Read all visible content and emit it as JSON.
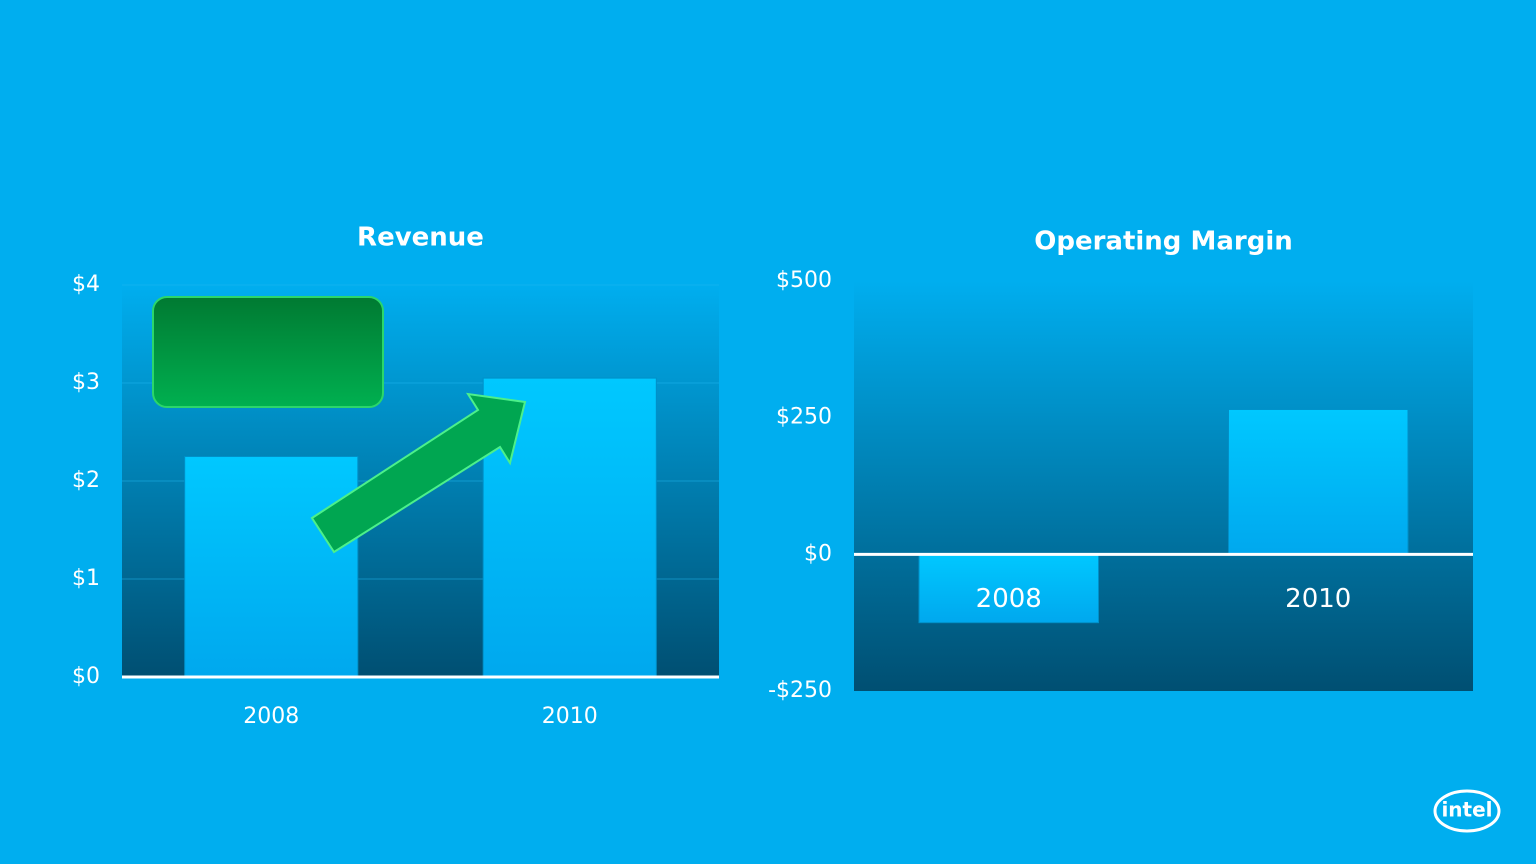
{
  "chart_data": [
    {
      "type": "bar",
      "title": "Revenue",
      "categories": [
        "2008",
        "2010"
      ],
      "values": [
        2.25,
        3.05
      ],
      "color": "#00b8f5",
      "ylim": [
        0,
        4
      ],
      "yticks": [
        {
          "value": 0,
          "label": "$0"
        },
        {
          "value": 1,
          "label": "$1"
        },
        {
          "value": 2,
          "label": "$2"
        },
        {
          "value": 3,
          "label": "$3"
        },
        {
          "value": 4,
          "label": "$4"
        }
      ],
      "grid": true
    },
    {
      "type": "bar",
      "title": "Operating Margin",
      "categories": [
        "2008",
        "2010"
      ],
      "values": [
        -125,
        265
      ],
      "color": "#00b8f5",
      "ylim": [
        -250,
        500
      ],
      "yticks": [
        {
          "value": -250,
          "label": "-$250"
        },
        {
          "value": 0,
          "label": "$0"
        },
        {
          "value": 250,
          "label": "$250"
        },
        {
          "value": 500,
          "label": "$500"
        }
      ],
      "grid": false
    }
  ],
  "logo": "intel"
}
